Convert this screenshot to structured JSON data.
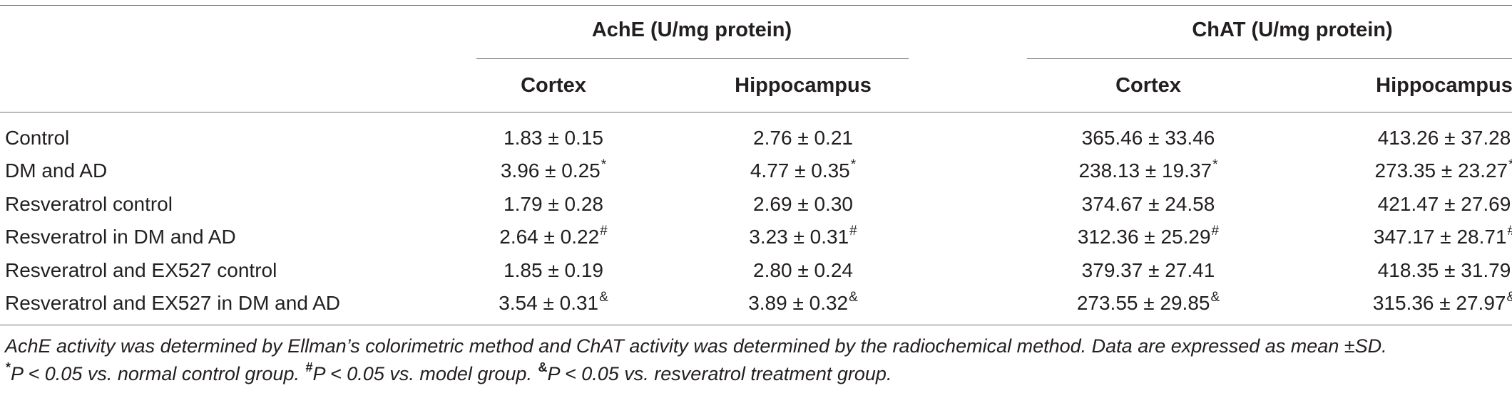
{
  "table": {
    "group_headers": [
      "AchE (U/mg protein)",
      "ChAT (U/mg protein)"
    ],
    "sub_headers": [
      "Cortex",
      "Hippocampus",
      "Cortex",
      "Hippocampus"
    ],
    "rows": [
      {
        "label": "Control",
        "cells": [
          {
            "v": "1.83 ± 0.15",
            "s": ""
          },
          {
            "v": "2.76 ± 0.21",
            "s": ""
          },
          {
            "v": "365.46 ± 33.46",
            "s": ""
          },
          {
            "v": "413.26 ± 37.28",
            "s": ""
          }
        ]
      },
      {
        "label": "DM and AD",
        "cells": [
          {
            "v": "3.96 ± 0.25",
            "s": "*"
          },
          {
            "v": "4.77 ± 0.35",
            "s": "*"
          },
          {
            "v": "238.13 ± 19.37",
            "s": "*"
          },
          {
            "v": "273.35 ± 23.27",
            "s": "*"
          }
        ]
      },
      {
        "label": "Resveratrol control",
        "cells": [
          {
            "v": "1.79 ± 0.28",
            "s": ""
          },
          {
            "v": "2.69 ± 0.30",
            "s": ""
          },
          {
            "v": "374.67 ± 24.58",
            "s": ""
          },
          {
            "v": "421.47 ± 27.69",
            "s": ""
          }
        ]
      },
      {
        "label": "Resveratrol in DM and AD",
        "cells": [
          {
            "v": "2.64 ± 0.22",
            "s": "#"
          },
          {
            "v": "3.23 ± 0.31",
            "s": "#"
          },
          {
            "v": "312.36 ± 25.29",
            "s": "#"
          },
          {
            "v": "347.17 ± 28.71",
            "s": "#"
          }
        ]
      },
      {
        "label": "Resveratrol and EX527 control",
        "cells": [
          {
            "v": "1.85 ± 0.19",
            "s": ""
          },
          {
            "v": "2.80 ± 0.24",
            "s": ""
          },
          {
            "v": "379.37 ± 27.41",
            "s": ""
          },
          {
            "v": "418.35 ± 31.79",
            "s": ""
          }
        ]
      },
      {
        "label": "Resveratrol and EX527 in DM and AD",
        "cells": [
          {
            "v": "3.54 ± 0.31",
            "s": "&"
          },
          {
            "v": "3.89 ± 0.32",
            "s": "&"
          },
          {
            "v": "273.55 ± 29.85",
            "s": "&"
          },
          {
            "v": "315.36 ± 27.97",
            "s": "&"
          }
        ]
      }
    ]
  },
  "footnote": {
    "line1": "AchE activity was determined by Ellman’s colorimetric method and ChAT activity was determined by the radiochemical method. Data are expressed as mean ±SD.",
    "marks": [
      "*",
      "#",
      "&"
    ],
    "texts": [
      "P < 0.05 vs. normal control group.",
      "P < 0.05 vs. model group.",
      "P < 0.05 vs. resveratrol treatment group."
    ]
  }
}
